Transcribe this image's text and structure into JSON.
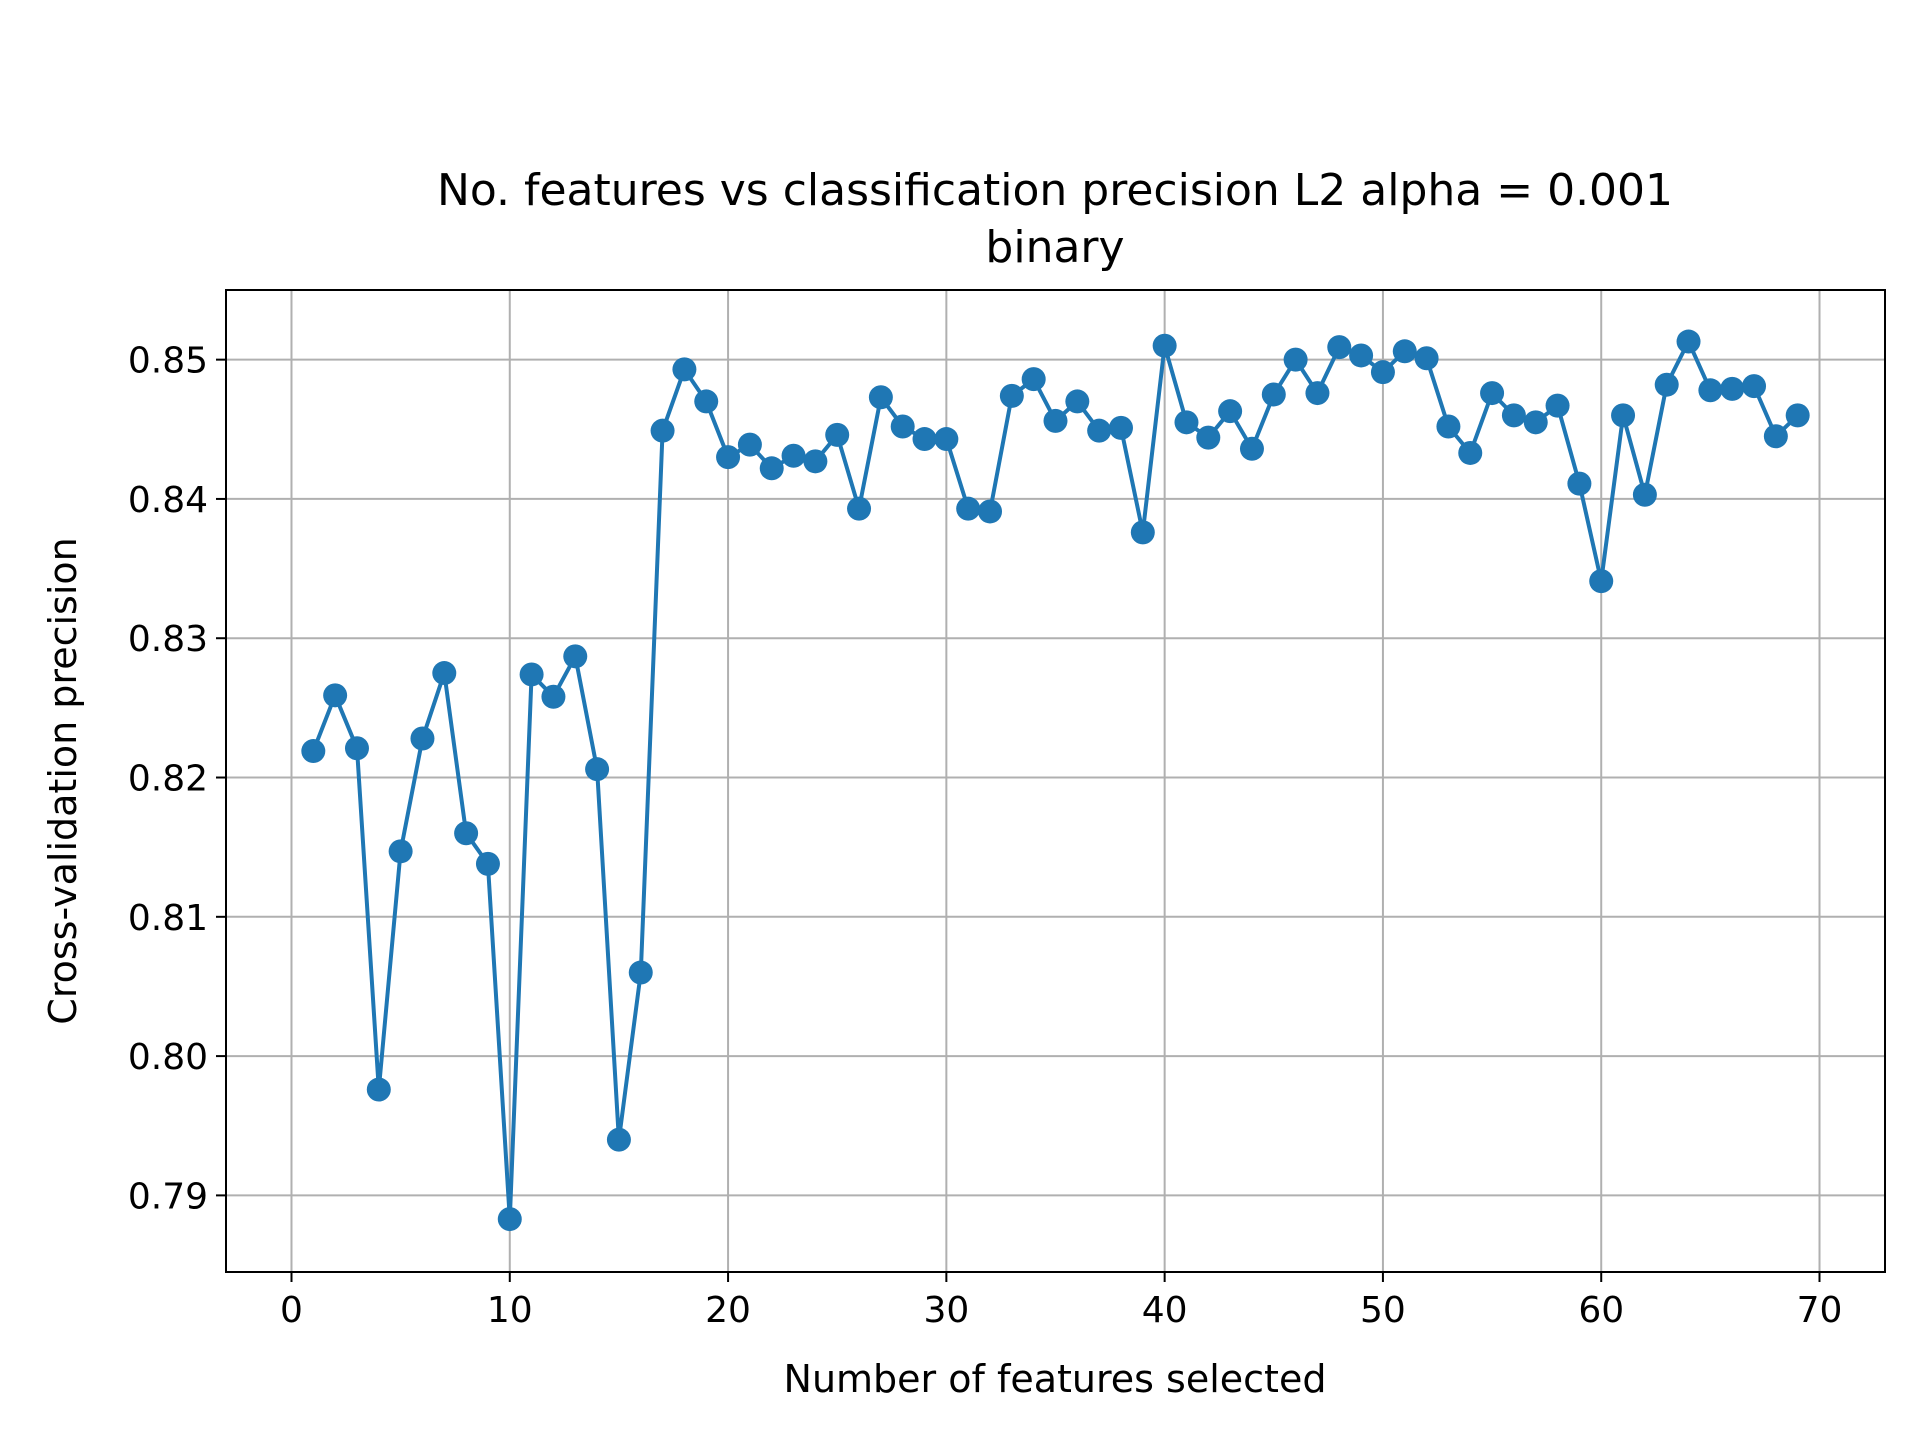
{
  "chart_data": {
    "type": "line",
    "title": "No. features vs classification precision L2 alpha = 0.001",
    "subtitle": "binary",
    "xlabel": "Number of features selected",
    "ylabel": "Cross-validation precision",
    "xlim": [
      -3,
      73
    ],
    "ylim": [
      0.7845,
      0.855
    ],
    "xticks": [
      0,
      10,
      20,
      30,
      40,
      50,
      60,
      70
    ],
    "xtick_labels": [
      "0",
      "10",
      "20",
      "30",
      "40",
      "50",
      "60",
      "70"
    ],
    "yticks": [
      0.79,
      0.8,
      0.81,
      0.82,
      0.83,
      0.84,
      0.85
    ],
    "ytick_labels": [
      "0.79",
      "0.80",
      "0.81",
      "0.82",
      "0.83",
      "0.84",
      "0.85"
    ],
    "grid": true,
    "color": "#1f77b4",
    "marker": "circle",
    "series": [
      {
        "x": [
          1,
          2,
          3,
          4,
          5,
          6,
          7,
          8,
          9,
          10,
          11,
          12,
          13,
          14,
          15,
          16,
          17,
          18,
          19,
          20,
          21,
          22,
          23,
          24,
          25,
          26,
          27,
          28,
          29,
          30,
          31,
          32,
          33,
          34,
          35,
          36,
          37,
          38,
          39,
          40,
          41,
          42,
          43,
          44,
          45,
          46,
          47,
          48,
          49,
          50,
          51,
          52,
          53,
          54,
          55,
          56,
          57,
          58,
          59,
          60,
          61,
          62,
          63,
          64,
          65,
          66,
          67,
          68,
          69
        ],
        "values": [
          0.8219,
          0.8259,
          0.8221,
          0.7976,
          0.8147,
          0.8228,
          0.8275,
          0.816,
          0.8138,
          0.7883,
          0.8274,
          0.8258,
          0.8287,
          0.8206,
          0.794,
          0.806,
          0.8449,
          0.8493,
          0.847,
          0.843,
          0.8439,
          0.8422,
          0.8431,
          0.8427,
          0.8446,
          0.8393,
          0.8473,
          0.8452,
          0.8443,
          0.8443,
          0.8393,
          0.8391,
          0.8474,
          0.8486,
          0.8456,
          0.847,
          0.8449,
          0.8451,
          0.8376,
          0.851,
          0.8455,
          0.8444,
          0.8463,
          0.8436,
          0.8475,
          0.85,
          0.8476,
          0.8509,
          0.8503,
          0.8491,
          0.8506,
          0.8501,
          0.8452,
          0.8433,
          0.8476,
          0.846,
          0.8455,
          0.8467,
          0.8411,
          0.8341,
          0.846,
          0.8403,
          0.8482,
          0.8513,
          0.8478,
          0.8479,
          0.8481,
          0.8445,
          0.846
        ]
      }
    ]
  }
}
